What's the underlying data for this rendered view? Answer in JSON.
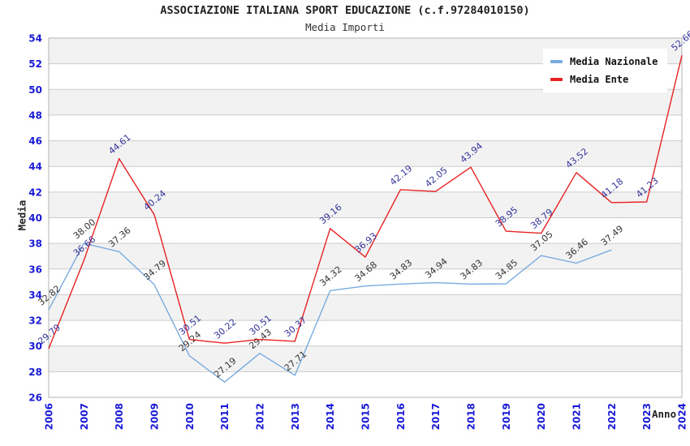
{
  "header": {
    "title": "ASSOCIAZIONE ITALIANA SPORT EDUCAZIONE (c.f.97284010150)",
    "subtitle": "Media Importi"
  },
  "chart_data": {
    "type": "line",
    "title": "ASSOCIAZIONE ITALIANA SPORT EDUCAZIONE (c.f.97284010150)",
    "subtitle": "Media Importi",
    "xlabel": "Anno",
    "ylabel": "Media",
    "x": [
      2006,
      2007,
      2008,
      2009,
      2010,
      2011,
      2012,
      2013,
      2014,
      2015,
      2016,
      2017,
      2018,
      2019,
      2020,
      2021,
      2022,
      2023,
      2024
    ],
    "ylim": [
      26,
      54
    ],
    "ytick_step": 2,
    "grid": "horizontal-bands-alternating",
    "legend_position": "top-right",
    "colors": {
      "axis_tick": "#1a1ad6",
      "band": "#f2f2f2",
      "gridline": "#cccccc",
      "plot_border": "#b3b3b3"
    },
    "series": [
      {
        "name": "Media Nazionale",
        "color": "#7aabdf",
        "label_color": "#333333",
        "values": [
          32.82,
          38.0,
          37.36,
          34.79,
          29.24,
          27.19,
          29.43,
          27.71,
          34.32,
          34.68,
          34.83,
          34.94,
          34.83,
          34.85,
          37.05,
          36.46,
          37.49,
          null,
          null
        ]
      },
      {
        "name": "Media Ente",
        "color": "#e82222",
        "label_color": "#333399",
        "values": [
          29.79,
          36.66,
          44.61,
          40.24,
          30.51,
          30.22,
          30.51,
          30.37,
          39.16,
          36.93,
          42.19,
          42.05,
          43.94,
          38.95,
          38.79,
          43.52,
          41.18,
          41.23,
          52.66
        ]
      }
    ]
  }
}
